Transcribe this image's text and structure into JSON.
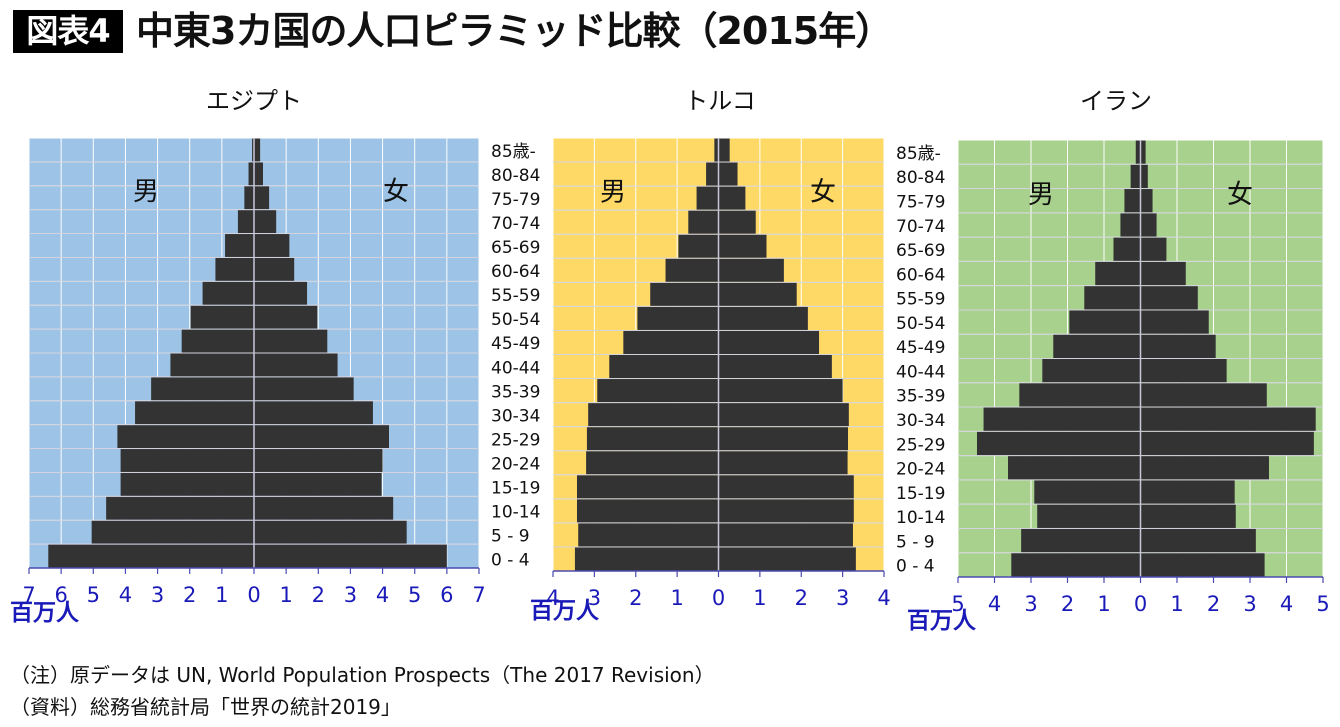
{
  "header": {
    "badge": "図表4",
    "title": "中東3カ国の人口ピラミッド比較（2015年）"
  },
  "notes": [
    "（注）原データは UN, World Population Prospects（The 2017 Revision）",
    "（資料）総務省統計局「世界の統計2019」"
  ],
  "colors": {
    "bar": "#333333",
    "axis": "#4a4ab0",
    "tick_label": "#1a1ab8",
    "egypt_bg": "#9dc3e6",
    "turkey_bg": "#ffd966",
    "iran_bg": "#a9d18e",
    "grid": "#ffffff"
  },
  "chart_data": [
    {
      "type": "bar",
      "orientation": "horizontal-pyramid",
      "title": "エジプト",
      "xlabel": "百万人",
      "left_label": "男",
      "right_label": "女",
      "xlim": [
        -7,
        7
      ],
      "xticks": [
        7,
        6,
        5,
        4,
        3,
        2,
        1,
        0,
        1,
        2,
        3,
        4,
        5,
        6,
        7
      ],
      "grid": true,
      "show_age_labels": false,
      "categories": [
        "85歳-",
        "80-84",
        "75-79",
        "70-74",
        "65-69",
        "60-64",
        "55-59",
        "50-54",
        "45-49",
        "40-44",
        "35-39",
        "30-34",
        "25-29",
        "20-24",
        "15-19",
        "10-14",
        "5 - 9",
        "0 - 4"
      ],
      "series": [
        {
          "name": "男",
          "values": [
            0.06,
            0.17,
            0.3,
            0.5,
            0.9,
            1.2,
            1.6,
            1.97,
            2.25,
            2.6,
            3.2,
            3.7,
            4.25,
            4.15,
            4.15,
            4.6,
            5.05,
            6.4
          ]
        },
        {
          "name": "女",
          "values": [
            0.19,
            0.28,
            0.47,
            0.69,
            1.1,
            1.25,
            1.65,
            1.97,
            2.28,
            2.6,
            3.1,
            3.7,
            4.2,
            4.0,
            3.97,
            4.33,
            4.75,
            6.0
          ]
        }
      ]
    },
    {
      "type": "bar",
      "orientation": "horizontal-pyramid",
      "title": "トルコ",
      "xlabel": "百万人",
      "left_label": "男",
      "right_label": "女",
      "xlim": [
        -4,
        4
      ],
      "xticks": [
        4,
        3,
        2,
        1,
        0,
        1,
        2,
        3,
        4
      ],
      "grid": true,
      "show_age_labels": true,
      "categories": [
        "85歳-",
        "80-84",
        "75-79",
        "70-74",
        "65-69",
        "60-64",
        "55-59",
        "50-54",
        "45-49",
        "40-44",
        "35-39",
        "30-34",
        "25-29",
        "20-24",
        "15-19",
        "10-14",
        "5 - 9",
        "0 - 4"
      ],
      "series": [
        {
          "name": "男",
          "values": [
            0.1,
            0.3,
            0.53,
            0.73,
            0.97,
            1.28,
            1.65,
            1.96,
            2.3,
            2.64,
            2.93,
            3.15,
            3.18,
            3.2,
            3.42,
            3.42,
            3.39,
            3.47
          ]
        },
        {
          "name": "女",
          "values": [
            0.27,
            0.46,
            0.65,
            0.9,
            1.16,
            1.58,
            1.89,
            2.16,
            2.43,
            2.74,
            3.0,
            3.15,
            3.13,
            3.12,
            3.27,
            3.27,
            3.25,
            3.32
          ]
        }
      ]
    },
    {
      "type": "bar",
      "orientation": "horizontal-pyramid",
      "title": "イラン",
      "xlabel": "百万人",
      "left_label": "男",
      "right_label": "女",
      "xlim": [
        -5,
        5
      ],
      "xticks": [
        5,
        4,
        3,
        2,
        1,
        0,
        1,
        2,
        3,
        4,
        5
      ],
      "grid": true,
      "show_age_labels": true,
      "categories": [
        "85歳-",
        "80-84",
        "75-79",
        "70-74",
        "65-69",
        "60-64",
        "55-59",
        "50-54",
        "45-49",
        "40-44",
        "35-39",
        "30-34",
        "25-29",
        "20-24",
        "15-19",
        "10-14",
        "5 - 9",
        "0 - 4"
      ],
      "series": [
        {
          "name": "男",
          "values": [
            0.13,
            0.27,
            0.44,
            0.55,
            0.74,
            1.24,
            1.54,
            1.95,
            2.39,
            2.69,
            3.32,
            4.3,
            4.48,
            3.63,
            2.91,
            2.83,
            3.27,
            3.54
          ]
        },
        {
          "name": "女",
          "values": [
            0.14,
            0.2,
            0.33,
            0.44,
            0.71,
            1.24,
            1.57,
            1.87,
            2.06,
            2.36,
            3.46,
            4.8,
            4.75,
            3.52,
            2.58,
            2.61,
            3.16,
            3.4
          ]
        }
      ]
    }
  ]
}
